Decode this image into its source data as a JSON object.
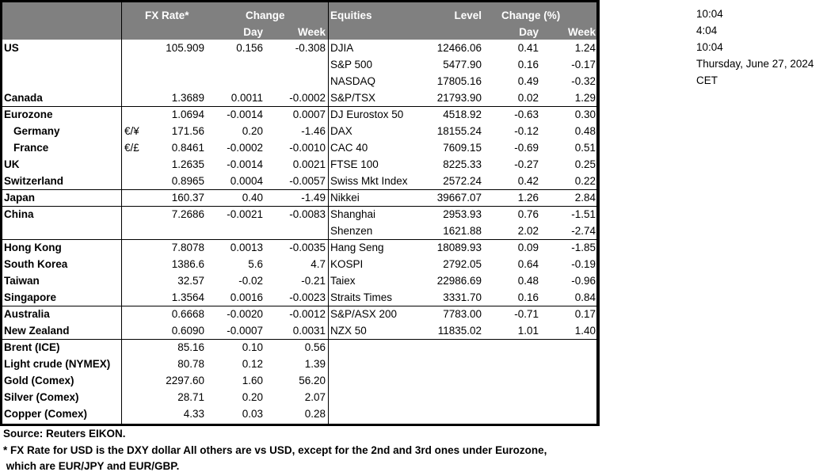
{
  "header": {
    "fx_rate": "FX Rate*",
    "change": "Change",
    "day": "Day",
    "week": "Week",
    "equities": "Equities",
    "level": "Level",
    "change_pct": "Change (%)",
    "eq_day": "Day",
    "eq_week": "Week"
  },
  "groups": [
    [
      {
        "label": "US",
        "sub": "",
        "fx": "105.909",
        "day": "0.156",
        "week": "-0.308",
        "eq": "DJIA",
        "level": "12466.06",
        "eday": "0.41",
        "eweek": "1.24"
      },
      {
        "label": "",
        "sub": "",
        "fx": "",
        "day": "",
        "week": "",
        "eq": "S&P 500",
        "level": "5477.90",
        "eday": "0.16",
        "eweek": "-0.17"
      },
      {
        "label": "",
        "sub": "",
        "fx": "",
        "day": "",
        "week": "",
        "eq": "NASDAQ",
        "level": "17805.16",
        "eday": "0.49",
        "eweek": "-0.32"
      },
      {
        "label": "Canada",
        "sub": "",
        "fx": "1.3689",
        "day": "0.0011",
        "week": "-0.0002",
        "eq": "S&P/TSX",
        "level": "21793.90",
        "eday": "0.02",
        "eweek": "1.29"
      }
    ],
    [
      {
        "label": "Eurozone",
        "sub": "",
        "fx": "1.0694",
        "day": "-0.0014",
        "week": "0.0007",
        "eq": "DJ Eurostox 50",
        "level": "4518.92",
        "eday": "-0.63",
        "eweek": "0.30"
      },
      {
        "label": "Germany",
        "sub": "€/¥",
        "fx": "171.56",
        "day": "0.20",
        "week": "-1.46",
        "eq": "DAX",
        "level": "18155.24",
        "eday": "-0.12",
        "eweek": "0.48"
      },
      {
        "label": "France",
        "sub": "€/£",
        "fx": "0.8461",
        "day": "-0.0002",
        "week": "-0.0010",
        "eq": "CAC 40",
        "level": "7609.15",
        "eday": "-0.69",
        "eweek": "0.51"
      },
      {
        "label": "UK",
        "sub": "",
        "fx": "1.2635",
        "day": "-0.0014",
        "week": "0.0021",
        "eq": "FTSE 100",
        "level": "8225.33",
        "eday": "-0.27",
        "eweek": "0.25"
      },
      {
        "label": "Switzerland",
        "sub": "",
        "fx": "0.8965",
        "day": "0.0004",
        "week": "-0.0057",
        "eq": "Swiss Mkt Index",
        "level": "2572.24",
        "eday": "0.42",
        "eweek": "0.22"
      }
    ],
    [
      {
        "label": "Japan",
        "sub": "",
        "fx": "160.37",
        "day": "0.40",
        "week": "-1.49",
        "eq": "Nikkei",
        "level": "39667.07",
        "eday": "1.26",
        "eweek": "2.84"
      }
    ],
    [
      {
        "label": "China",
        "sub": "",
        "fx": "7.2686",
        "day": "-0.0021",
        "week": "-0.0083",
        "eq": "Shanghai",
        "level": "2953.93",
        "eday": "0.76",
        "eweek": "-1.51"
      },
      {
        "label": "",
        "sub": "",
        "fx": "",
        "day": "",
        "week": "",
        "eq": "Shenzen",
        "level": "1621.88",
        "eday": "2.02",
        "eweek": "-2.74"
      }
    ],
    [
      {
        "label": "Hong Kong",
        "sub": "",
        "fx": "7.8078",
        "day": "0.0013",
        "week": "-0.0035",
        "eq": "Hang Seng",
        "level": "18089.93",
        "eday": "0.09",
        "eweek": "-1.85"
      },
      {
        "label": "South Korea",
        "sub": "",
        "fx": "1386.6",
        "day": "5.6",
        "week": "4.7",
        "eq": "KOSPI",
        "level": "2792.05",
        "eday": "0.64",
        "eweek": "-0.19"
      },
      {
        "label": "Taiwan",
        "sub": "",
        "fx": "32.57",
        "day": "-0.02",
        "week": "-0.21",
        "eq": "Taiex",
        "level": "22986.69",
        "eday": "0.48",
        "eweek": "-0.96"
      },
      {
        "label": "Singapore",
        "sub": "",
        "fx": "1.3564",
        "day": "0.0016",
        "week": "-0.0023",
        "eq": "Straits Times",
        "level": "3331.70",
        "eday": "0.16",
        "eweek": "0.84"
      }
    ],
    [
      {
        "label": "Australia",
        "sub": "",
        "fx": "0.6668",
        "day": "-0.0020",
        "week": "-0.0012",
        "eq": "S&P/ASX  200",
        "level": "7783.00",
        "eday": "-0.71",
        "eweek": "0.17"
      },
      {
        "label": "New Zealand",
        "sub": "",
        "fx": "0.6090",
        "day": "-0.0007",
        "week": "0.0031",
        "eq": "NZX 50",
        "level": "11835.02",
        "eday": "1.01",
        "eweek": "1.40"
      }
    ],
    [
      {
        "label": "Brent (ICE)",
        "sub": "",
        "fx": "85.16",
        "day": "0.10",
        "week": "0.56",
        "eq": "",
        "level": "",
        "eday": "",
        "eweek": ""
      },
      {
        "label": "Light crude (NYMEX)",
        "sub": "",
        "fx": "80.78",
        "day": "0.12",
        "week": "1.39",
        "eq": "",
        "level": "",
        "eday": "",
        "eweek": ""
      },
      {
        "label": "Gold (Comex)",
        "sub": "",
        "fx": "2297.60",
        "day": "1.60",
        "week": "56.20",
        "eq": "",
        "level": "",
        "eday": "",
        "eweek": ""
      },
      {
        "label": "Silver (Comex)",
        "sub": "",
        "fx": "28.71",
        "day": "0.20",
        "week": "2.07",
        "eq": "",
        "level": "",
        "eday": "",
        "eweek": ""
      },
      {
        "label": "Copper (Comex)",
        "sub": "",
        "fx": "4.33",
        "day": "0.03",
        "week": "0.28",
        "eq": "",
        "level": "",
        "eday": "",
        "eweek": ""
      }
    ]
  ],
  "footer": {
    "source": "Source:  Reuters EIKON.",
    "note_line1": "* FX Rate for USD is the DXY dollar  All others are vs USD, except for the 2nd and 3rd ones under Eurozone,",
    "note_line2": " which are EUR/JPY and EUR/GBP."
  },
  "side": [
    "10:04",
    "4:04",
    "10:04",
    "Thursday, June 27, 2024",
    "CET"
  ],
  "colors": {
    "header_bg": "#808080",
    "header_text": "#ffffff"
  }
}
